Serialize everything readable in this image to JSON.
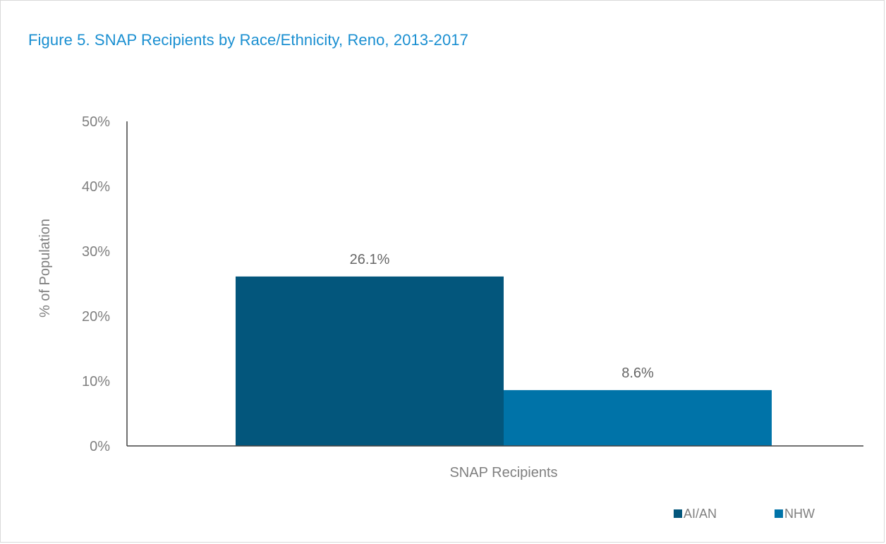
{
  "chart_data": {
    "type": "bar",
    "title": "Figure 5. SNAP Recipients by Race/Ethnicity, Reno, 2013-2017",
    "categories": [
      "SNAP Recipients"
    ],
    "series": [
      {
        "name": "AI/AN",
        "values": [
          26.1
        ],
        "label": "26.1%",
        "color": "#03567c"
      },
      {
        "name": "NHW",
        "values": [
          8.6
        ],
        "label": "8.6%",
        "color": "#0073a8"
      }
    ],
    "xlabel": "",
    "ylabel": "% of Population",
    "ylim": [
      0,
      50
    ],
    "yticks": [
      0,
      10,
      20,
      30,
      40,
      50
    ],
    "ytick_labels": [
      "0%",
      "10%",
      "20%",
      "30%",
      "40%",
      "50%"
    ],
    "grid": false,
    "legend_position": "bottom-right"
  },
  "colors": {
    "title": "#1a8fd1",
    "axis": "#404040",
    "text": "#7f7f7f"
  }
}
